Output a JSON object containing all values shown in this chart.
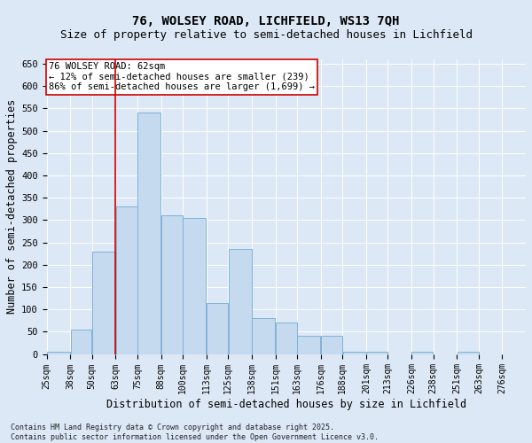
{
  "title_line1": "76, WOLSEY ROAD, LICHFIELD, WS13 7QH",
  "title_line2": "Size of property relative to semi-detached houses in Lichfield",
  "xlabel": "Distribution of semi-detached houses by size in Lichfield",
  "ylabel": "Number of semi-detached properties",
  "footer_line1": "Contains HM Land Registry data © Crown copyright and database right 2025.",
  "footer_line2": "Contains public sector information licensed under the Open Government Licence v3.0.",
  "annotation_title": "76 WOLSEY ROAD: 62sqm",
  "annotation_line1": "← 12% of semi-detached houses are smaller (239)",
  "annotation_line2": "86% of semi-detached houses are larger (1,699) →",
  "bar_left_edges": [
    25,
    38,
    50,
    63,
    75,
    88,
    100,
    113,
    125,
    138,
    151,
    163,
    176,
    188,
    201,
    213,
    226,
    238,
    251,
    263
  ],
  "bar_widths": [
    13,
    12,
    13,
    12,
    13,
    12,
    13,
    12,
    13,
    13,
    12,
    13,
    12,
    13,
    12,
    13,
    12,
    13,
    12,
    13
  ],
  "bar_heights": [
    5,
    55,
    230,
    330,
    540,
    310,
    305,
    115,
    235,
    80,
    70,
    40,
    40,
    5,
    5,
    0,
    5,
    0,
    5,
    0
  ],
  "bar_color": "#c5d9ef",
  "bar_edge_color": "#7fb3d8",
  "vline_color": "#cc0000",
  "vline_x": 63,
  "ylim": [
    0,
    660
  ],
  "yticks": [
    0,
    50,
    100,
    150,
    200,
    250,
    300,
    350,
    400,
    450,
    500,
    550,
    600,
    650
  ],
  "tick_labels": [
    "25sqm",
    "38sqm",
    "50sqm",
    "63sqm",
    "75sqm",
    "88sqm",
    "100sqm",
    "113sqm",
    "125sqm",
    "138sqm",
    "151sqm",
    "163sqm",
    "176sqm",
    "188sqm",
    "201sqm",
    "213sqm",
    "226sqm",
    "238sqm",
    "251sqm",
    "263sqm",
    "276sqm"
  ],
  "bg_color": "#dce8f5",
  "plot_bg_color": "#dce8f5",
  "annotation_box_color": "#ffffff",
  "annotation_box_edge": "#cc0000",
  "title_fontsize": 10,
  "subtitle_fontsize": 9,
  "axis_label_fontsize": 8.5,
  "tick_fontsize": 7,
  "annotation_fontsize": 7.5,
  "footer_fontsize": 6
}
